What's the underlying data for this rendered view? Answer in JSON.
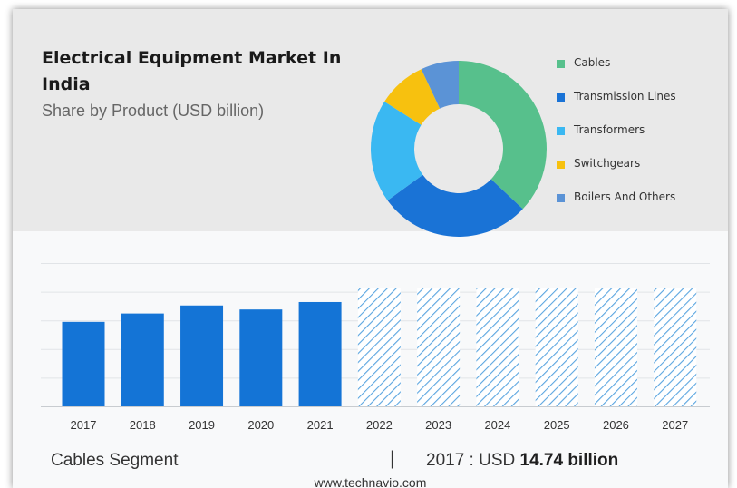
{
  "chart_data": [
    {
      "type": "pie",
      "donut": true,
      "title": "Electrical Equipment Market In India",
      "subtitle": "Share by Product (USD billion)",
      "legend_position": "right",
      "slices": [
        {
          "label": "Cables",
          "value": 37,
          "color": "#57c08c"
        },
        {
          "label": "Transmission Lines",
          "value": 28,
          "color": "#1a73d6"
        },
        {
          "label": "Transformers",
          "value": 19,
          "color": "#3ab8f2"
        },
        {
          "label": "Switchgears",
          "value": 9,
          "color": "#f7c10f"
        },
        {
          "label": "Boilers And Others",
          "value": 7,
          "color": "#5b93d6"
        }
      ]
    },
    {
      "type": "bar",
      "categories": [
        "2017",
        "2018",
        "2019",
        "2020",
        "2021",
        "2022",
        "2023",
        "2024",
        "2025",
        "2026",
        "2027"
      ],
      "values": [
        14.74,
        16.2,
        17.6,
        16.9,
        18.2,
        null,
        null,
        null,
        null,
        null,
        null
      ],
      "forecast_bars": [
        "2022",
        "2023",
        "2024",
        "2025",
        "2026",
        "2027"
      ],
      "ylim": [
        0,
        25
      ],
      "grid": true,
      "bar_color": "#1474d6",
      "forecast_color": "#5aa5e0"
    }
  ],
  "footer": {
    "segment_label": "Cables Segment",
    "divider": "|",
    "value_prefix": "2017 : USD ",
    "value_bold": "14.74 billion"
  },
  "source": "www.technavio.com"
}
